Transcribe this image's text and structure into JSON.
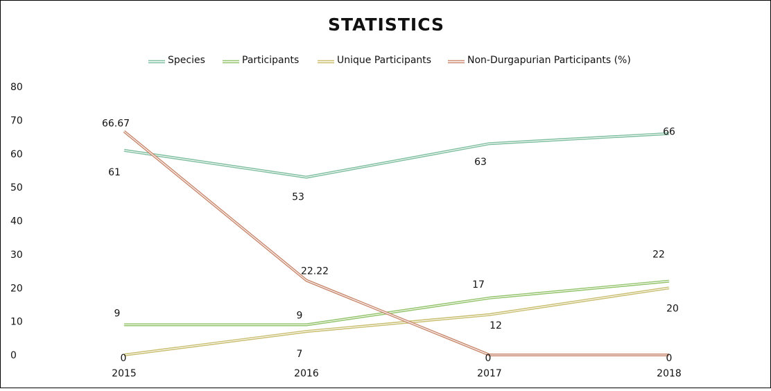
{
  "chart_data": {
    "type": "line",
    "title": "STATISTICS",
    "xlabel": "",
    "ylabel": "",
    "categories": [
      "2015",
      "2016",
      "2017",
      "2018"
    ],
    "ylim": [
      0,
      80
    ],
    "yticks": [
      0,
      10,
      20,
      30,
      40,
      50,
      60,
      70,
      80
    ],
    "grid": false,
    "legend_position": "top",
    "series": [
      {
        "name": "Species",
        "color": "#7fbf9f",
        "values": [
          61,
          53,
          63,
          66
        ],
        "labels": [
          "61",
          "53",
          "63",
          "66"
        ]
      },
      {
        "name": "Participants",
        "color": "#93c36a",
        "values": [
          9,
          9,
          17,
          22
        ],
        "labels": [
          "9",
          "9",
          "17",
          "22"
        ]
      },
      {
        "name": "Unique Participants",
        "color": "#c9bd6e",
        "values": [
          0,
          7,
          12,
          20
        ],
        "labels": [
          "0",
          "7",
          "12",
          "20"
        ]
      },
      {
        "name": "Non-Durgapurian Participants (%)",
        "color": "#c98a70",
        "values": [
          66.67,
          22.22,
          0,
          0
        ],
        "labels": [
          "66.67",
          "22.22",
          "0",
          "0"
        ]
      }
    ]
  }
}
